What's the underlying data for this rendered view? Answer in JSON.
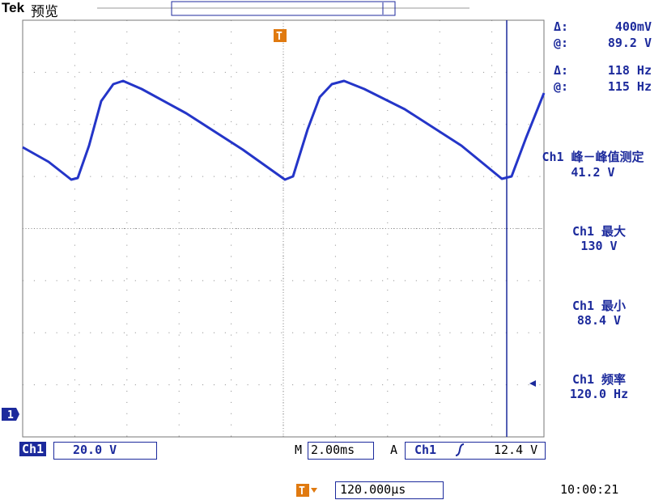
{
  "header": {
    "brand": "Tek",
    "mode": "预览"
  },
  "cursors": [
    {
      "label": "Δ:",
      "value": "400mV"
    },
    {
      "label": "@:",
      "value": "89.2 V"
    },
    {
      "label": "Δ:",
      "value": "118 Hz"
    },
    {
      "label": "@:",
      "value": "115 Hz"
    }
  ],
  "readouts": [
    {
      "label": "Ch1 峰－峰值测定",
      "value": "41.2 V"
    },
    {
      "label": "Ch1 最大",
      "value": "130 V"
    },
    {
      "label": "Ch1 最小",
      "value": "88.4 V"
    },
    {
      "label": "Ch1 频率",
      "value": "120.0 Hz"
    }
  ],
  "footer": {
    "channel": "Ch1",
    "scale": "20.0 V",
    "time_label": "M",
    "time_scale": "2.00ms",
    "trigger_label": "A",
    "trigger_source": "Ch1",
    "trigger_level": "12.4 V",
    "offset": "120.000µs",
    "time": "10:00:21"
  },
  "markers": {
    "channel": "1",
    "trigger": "T"
  }
}
